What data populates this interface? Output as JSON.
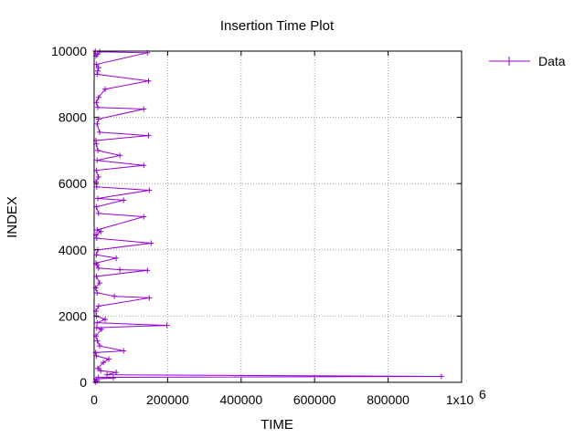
{
  "chart_data": {
    "type": "line",
    "title": "Insertion Time Plot",
    "xlabel": "TIME",
    "ylabel": "INDEX",
    "xlim": [
      0,
      1000000
    ],
    "ylim": [
      0,
      10000
    ],
    "x_ticks": [
      "0",
      "200000",
      "400000",
      "600000",
      "800000",
      "1x10"
    ],
    "x_tick_exponent": "6",
    "y_ticks": [
      "0",
      "2000",
      "4000",
      "6000",
      "8000",
      "10000"
    ],
    "grid": true,
    "legend_position": "top-right outside",
    "series_color": "#9400d3",
    "series": [
      {
        "name": "Data",
        "x": [
          3000,
          8000,
          5000,
          52000,
          12000,
          945000,
          35000,
          60000,
          18000,
          10000,
          25000,
          40000,
          6000,
          4000,
          80000,
          15000,
          9000,
          5000,
          20000,
          7000,
          198000,
          8000,
          30000,
          6000,
          5000,
          12000,
          150000,
          55000,
          8000,
          4000,
          15000,
          6000,
          145000,
          70000,
          12000,
          8000,
          5000,
          60000,
          6000,
          10000,
          155000,
          7000,
          5000,
          18000,
          8000,
          135000,
          12000,
          6000,
          80000,
          10000,
          150000,
          7000,
          5000,
          12000,
          6000,
          135000,
          8000,
          70000,
          10000,
          6000,
          5000,
          148000,
          15000,
          8000,
          12000,
          135000,
          10000,
          6000,
          12000,
          30000,
          148000,
          8000,
          10000,
          12000,
          6000,
          145000,
          15000,
          8000,
          5000,
          3000
        ],
        "y": [
          0,
          40,
          100,
          130,
          150,
          180,
          230,
          300,
          350,
          420,
          600,
          700,
          800,
          900,
          950,
          1100,
          1250,
          1400,
          1600,
          1650,
          1720,
          1800,
          1900,
          2000,
          2150,
          2300,
          2550,
          2600,
          2700,
          2850,
          3000,
          3200,
          3380,
          3400,
          3450,
          3550,
          3600,
          3750,
          3850,
          4000,
          4200,
          4350,
          4450,
          4550,
          4600,
          5000,
          5100,
          5300,
          5500,
          5550,
          5800,
          5900,
          6050,
          6200,
          6400,
          6550,
          6700,
          6850,
          7000,
          7200,
          7300,
          7450,
          7550,
          7800,
          7950,
          8250,
          8300,
          8450,
          8600,
          8850,
          9100,
          9300,
          9400,
          9500,
          9600,
          9950,
          9980,
          9900,
          9850,
          10000
        ]
      }
    ]
  }
}
